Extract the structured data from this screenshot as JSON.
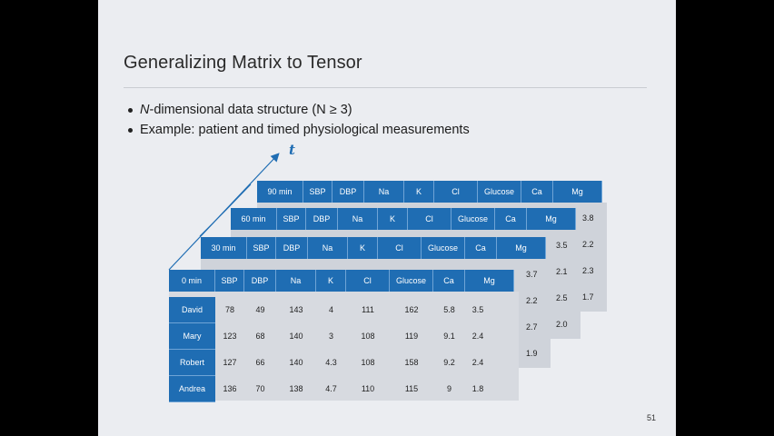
{
  "slide": {
    "title": "Generalizing Matrix to Tensor",
    "bullets": [
      {
        "em": "N",
        "rest": "-dimensional data structure (N ≥ 3)"
      },
      {
        "em": "",
        "rest": "Example: patient and timed physiological measurements"
      }
    ],
    "page_number": "51",
    "axis_label": "t"
  },
  "tensor": {
    "columns": [
      "SBP",
      "DBP",
      "Na",
      "K",
      "Cl",
      "Glucose",
      "Ca",
      "Mg"
    ],
    "rows": [
      "David",
      "Mary",
      "Robert",
      "Andrea"
    ],
    "slices": [
      {
        "time": "90 min",
        "visible_mg": [
          "3.8",
          "2.2",
          "2.3",
          "1.7"
        ]
      },
      {
        "time": "60 min",
        "visible_mg": [
          "3.5",
          "2.1",
          "2.5",
          "2.0"
        ]
      },
      {
        "time": "30 min",
        "visible_mg": [
          "3.7",
          "2.2",
          "2.7",
          "1.9"
        ]
      },
      {
        "time": "0 min",
        "values": [
          [
            "78",
            "49",
            "143",
            "4",
            "111",
            "162",
            "5.8",
            "3.5"
          ],
          [
            "123",
            "68",
            "140",
            "3",
            "108",
            "119",
            "9.1",
            "2.4"
          ],
          [
            "127",
            "66",
            "140",
            "4.3",
            "108",
            "158",
            "9.2",
            "2.4"
          ],
          [
            "136",
            "70",
            "138",
            "4.7",
            "110",
            "115",
            "9",
            "1.8"
          ]
        ]
      }
    ]
  },
  "colors": {
    "header_blue": "#1f6db3",
    "slide_bg": "#ebedf1",
    "axis_blue": "#1f6db3"
  }
}
